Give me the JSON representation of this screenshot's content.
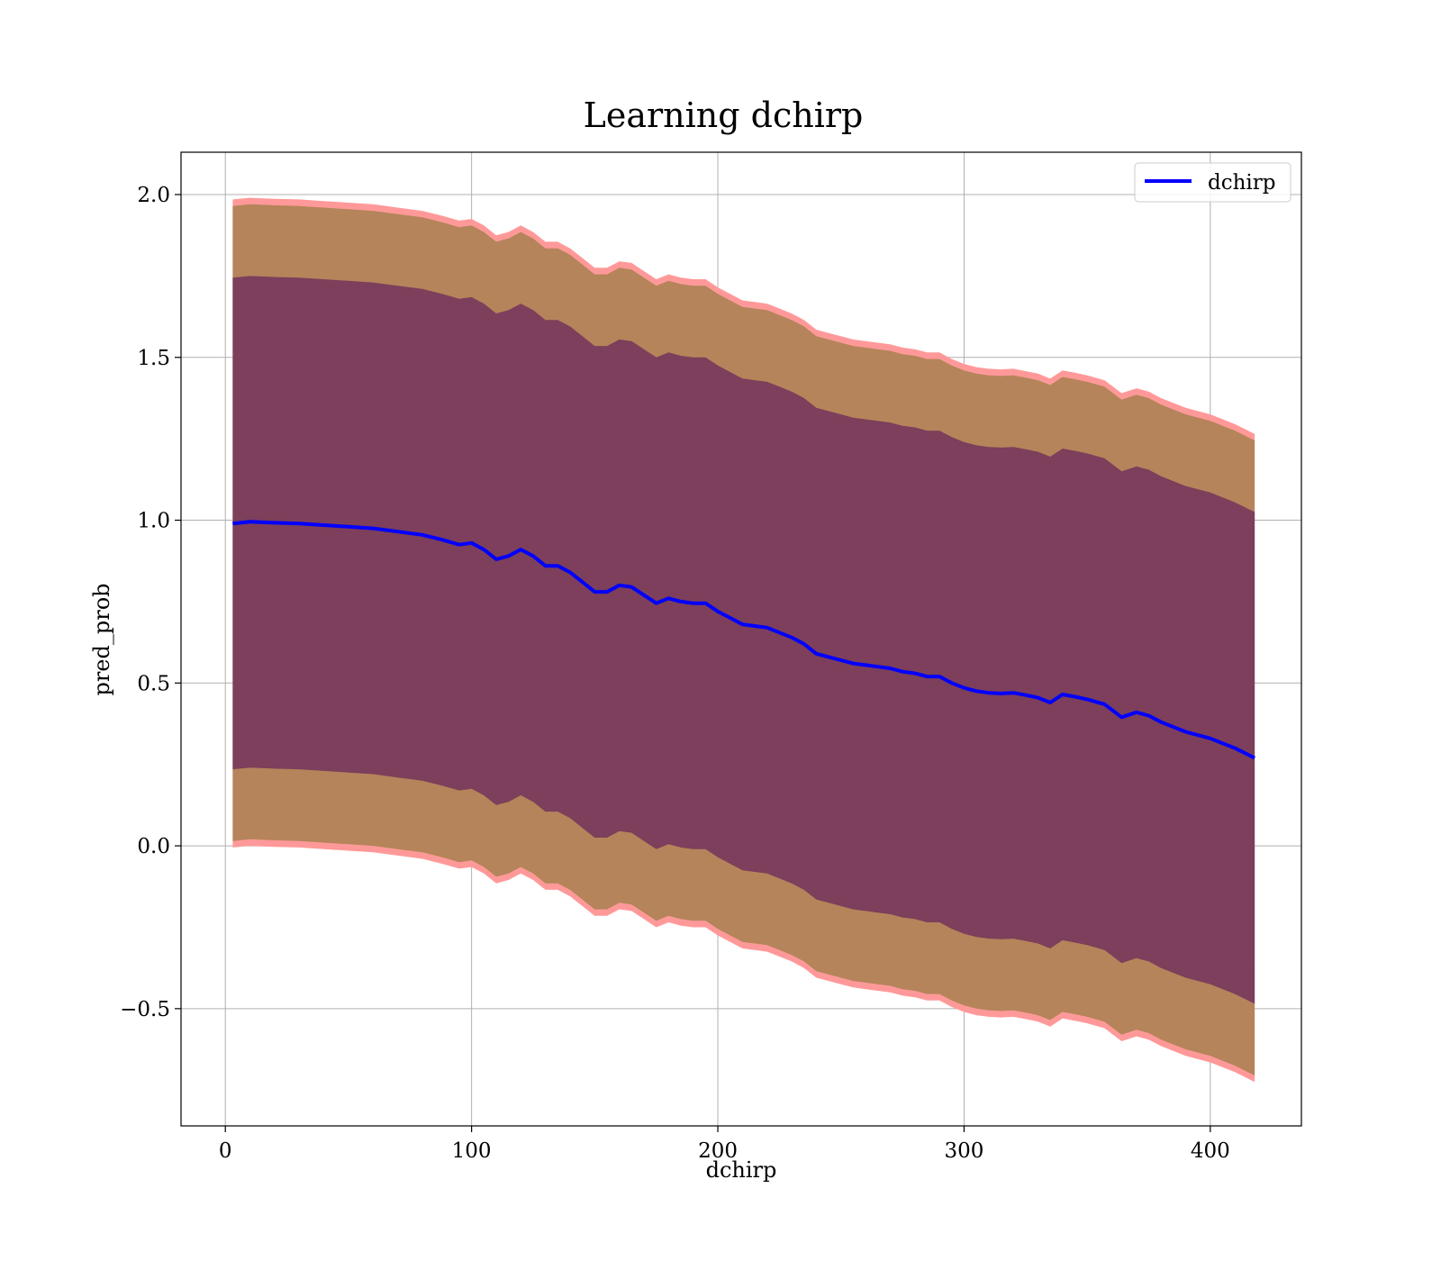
{
  "chart_data": {
    "type": "area",
    "title": "Learning dchirp",
    "xlabel": "dchirp",
    "ylabel": "pred_prob",
    "xlim": [
      -18,
      437
    ],
    "ylim": [
      -0.86,
      2.13
    ],
    "xticks": [
      0,
      100,
      200,
      300,
      400
    ],
    "yticks": [
      -0.5,
      0.0,
      0.5,
      1.0,
      1.5,
      2.0
    ],
    "xtick_labels": [
      "0",
      "100",
      "200",
      "300",
      "400"
    ],
    "ytick_labels": [
      "−0.5",
      "0.0",
      "0.5",
      "1.0",
      "1.5",
      "2.0"
    ],
    "grid": true,
    "legend_position": "top-right",
    "x": [
      3,
      10,
      20,
      30,
      40,
      50,
      60,
      70,
      80,
      88,
      95,
      100,
      105,
      110,
      115,
      120,
      125,
      130,
      135,
      140,
      145,
      150,
      155,
      160,
      165,
      170,
      175,
      180,
      185,
      190,
      195,
      200,
      205,
      210,
      215,
      220,
      225,
      230,
      235,
      240,
      245,
      250,
      255,
      260,
      265,
      270,
      275,
      280,
      285,
      290,
      295,
      300,
      305,
      310,
      315,
      320,
      325,
      330,
      335,
      340,
      345,
      350,
      357,
      364,
      370,
      375,
      380,
      390,
      400,
      410,
      418
    ],
    "series": [
      {
        "name": "dchirp",
        "color": "#0000ff",
        "values": [
          0.99,
          0.995,
          0.992,
          0.99,
          0.985,
          0.98,
          0.975,
          0.965,
          0.955,
          0.94,
          0.925,
          0.93,
          0.91,
          0.88,
          0.89,
          0.91,
          0.89,
          0.86,
          0.86,
          0.84,
          0.81,
          0.78,
          0.78,
          0.8,
          0.795,
          0.77,
          0.745,
          0.76,
          0.75,
          0.745,
          0.745,
          0.72,
          0.7,
          0.68,
          0.675,
          0.67,
          0.655,
          0.64,
          0.62,
          0.59,
          0.58,
          0.57,
          0.56,
          0.555,
          0.55,
          0.545,
          0.535,
          0.53,
          0.52,
          0.52,
          0.5,
          0.485,
          0.475,
          0.47,
          0.468,
          0.47,
          0.463,
          0.455,
          0.44,
          0.465,
          0.458,
          0.45,
          0.435,
          0.395,
          0.41,
          0.4,
          0.38,
          0.35,
          0.33,
          0.3,
          0.27
        ]
      }
    ],
    "bands": [
      {
        "role": "outer-band",
        "color": "#ff9999",
        "upper_offset": 0.995,
        "lower_offset": 0.995
      },
      {
        "role": "middle-band",
        "color": "#b5845a",
        "upper_offset": 0.975,
        "lower_offset": 0.975
      },
      {
        "role": "inner-band",
        "color": "#7d3f5b",
        "upper_offset": 0.755,
        "lower_offset": 0.755
      }
    ]
  }
}
